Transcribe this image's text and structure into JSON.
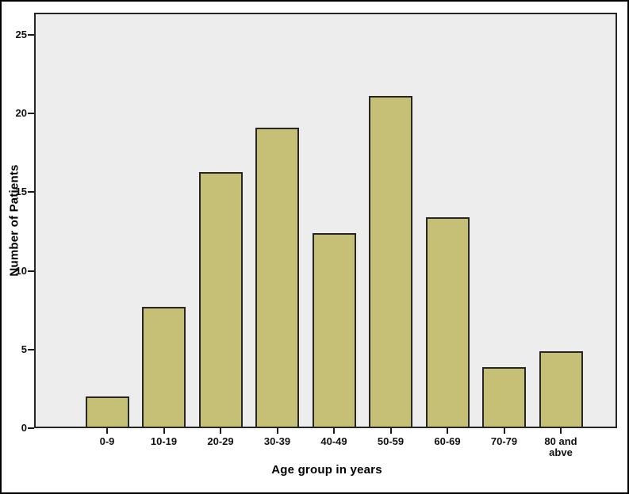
{
  "chart_data": {
    "type": "bar",
    "title": "",
    "xlabel": "Age group in years",
    "ylabel": "Number of Patients",
    "categories": [
      "0-9",
      "10-19",
      "20-29",
      "30-39",
      "40-49",
      "50-59",
      "60-69",
      "70-79",
      "80 and abve"
    ],
    "values": [
      1.9,
      7.6,
      16.2,
      19.0,
      12.3,
      21.0,
      13.3,
      3.8,
      4.8
    ],
    "yticks": [
      0,
      5,
      10,
      15,
      20,
      25
    ],
    "ylim": [
      0,
      26.2
    ],
    "grid": false,
    "legend": false,
    "bar_color": "#c6c077",
    "bar_border_color": "#262626",
    "plot_background": "#ededee",
    "figure_background": "#ffffff",
    "frame_color": "#262626"
  }
}
